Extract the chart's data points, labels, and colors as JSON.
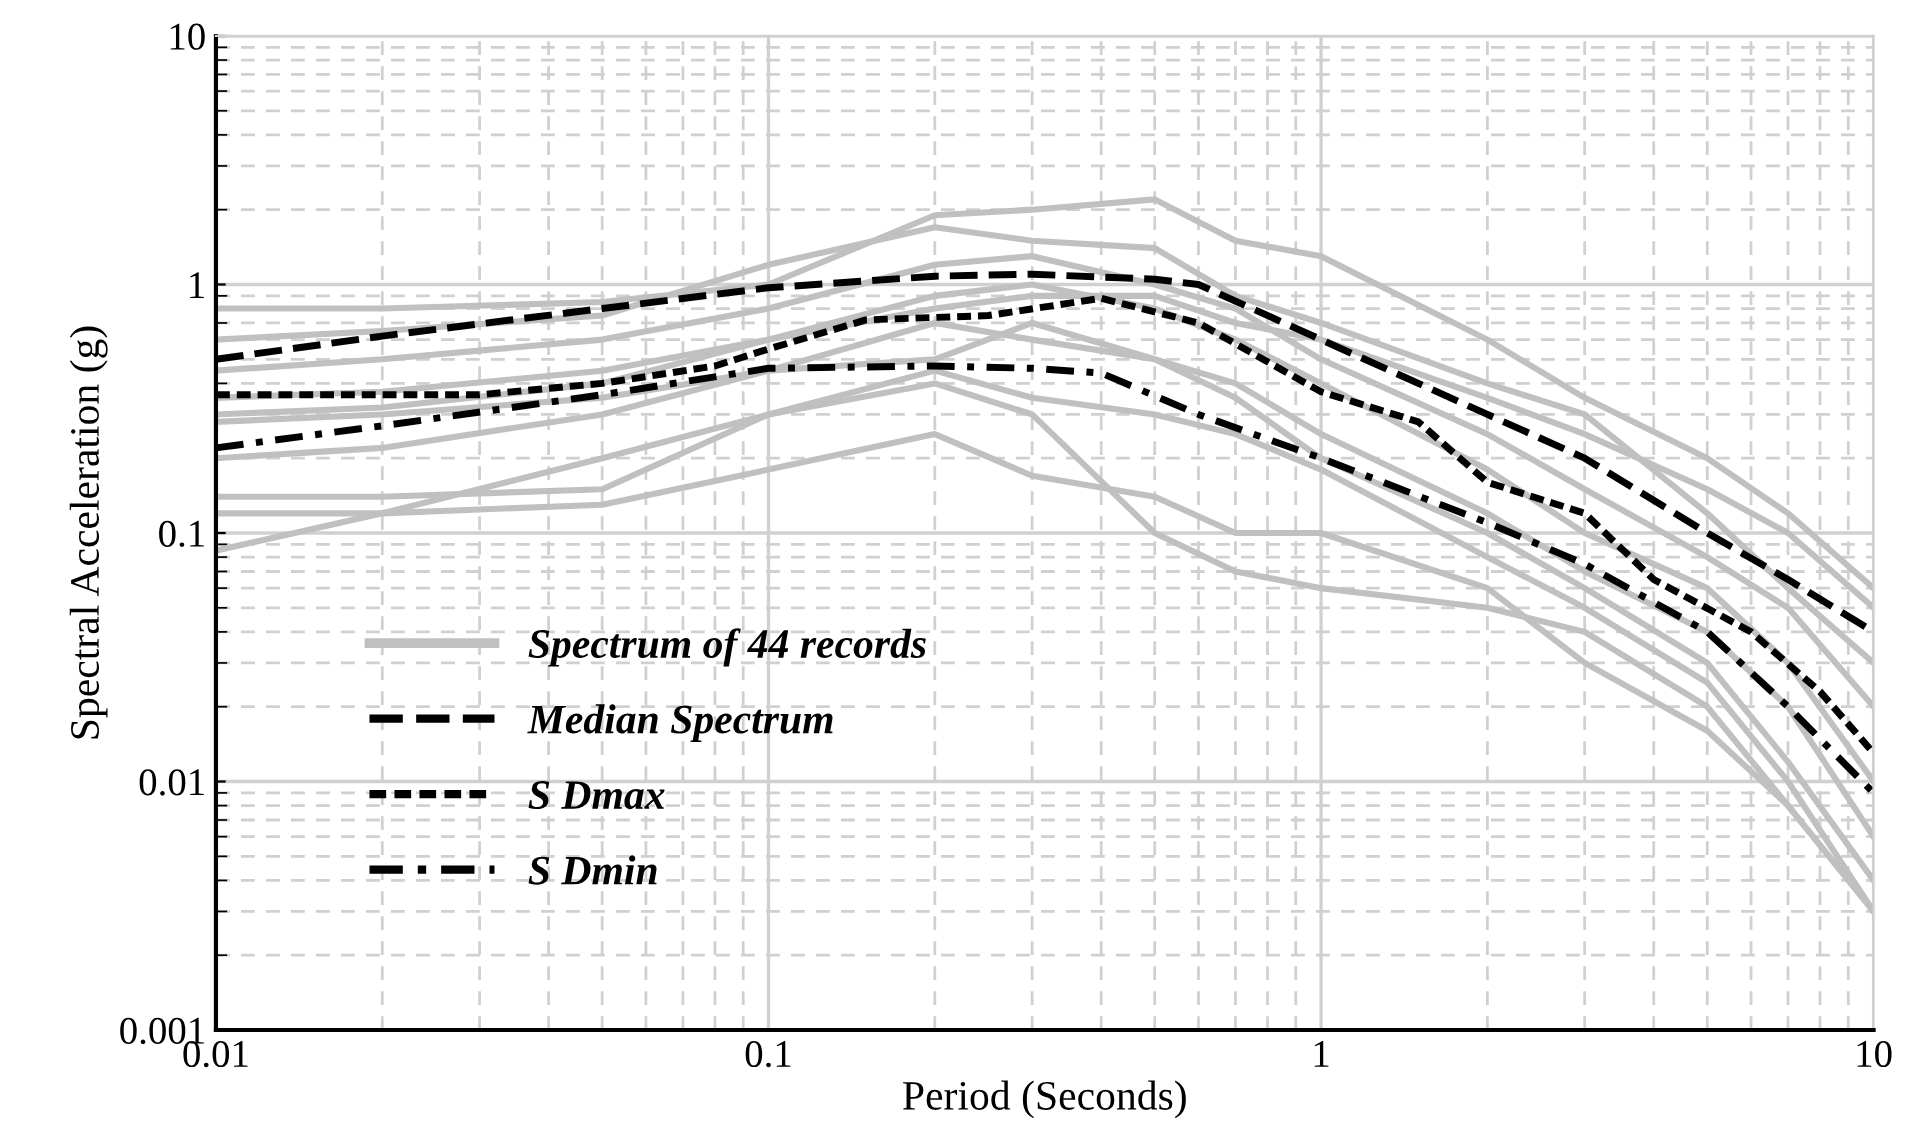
{
  "chart_data": {
    "type": "line",
    "xlabel": "Period (Seconds)",
    "ylabel": "Spectral Acceleration (g)",
    "log": "xy",
    "xlim": [
      0.01,
      10
    ],
    "xticks": [
      0.01,
      0.1,
      1,
      10
    ],
    "ylim": [
      0.001,
      10
    ],
    "yticks": [
      0.001,
      0.01,
      0.1,
      1,
      10
    ],
    "grid": true,
    "legend": "bottom left",
    "x": [
      0.01,
      0.02,
      0.05,
      0.1,
      0.2,
      0.3,
      0.5,
      0.7,
      1,
      2,
      3,
      5,
      7,
      10
    ],
    "series": [
      {
        "name": "Spectrum of 44 records",
        "color": "#c0c0c0",
        "line_style": "solid",
        "values": [
          0.8,
          0.8,
          0.85,
          1.0,
          1.9,
          2.0,
          2.2,
          1.5,
          1.3,
          0.6,
          0.35,
          0.2,
          0.12,
          0.06
        ]
      },
      {
        "color": "#c0c0c0",
        "line_style": "solid",
        "values": [
          0.6,
          0.65,
          0.75,
          1.2,
          1.7,
          1.5,
          1.4,
          0.9,
          0.7,
          0.4,
          0.3,
          0.12,
          0.06,
          0.03
        ]
      },
      {
        "color": "#c0c0c0",
        "line_style": "solid",
        "values": [
          0.45,
          0.5,
          0.6,
          0.8,
          1.2,
          1.3,
          1.0,
          0.8,
          0.5,
          0.25,
          0.15,
          0.08,
          0.05,
          0.02
        ]
      },
      {
        "color": "#c0c0c0",
        "line_style": "solid",
        "values": [
          0.35,
          0.37,
          0.45,
          0.6,
          0.9,
          1.0,
          0.8,
          0.6,
          0.4,
          0.18,
          0.1,
          0.06,
          0.03,
          0.01
        ]
      },
      {
        "color": "#c0c0c0",
        "line_style": "solid",
        "values": [
          0.28,
          0.3,
          0.35,
          0.45,
          0.7,
          0.6,
          0.5,
          0.4,
          0.25,
          0.12,
          0.07,
          0.04,
          0.02,
          0.006
        ]
      },
      {
        "color": "#c0c0c0",
        "line_style": "solid",
        "values": [
          0.2,
          0.22,
          0.3,
          0.45,
          0.5,
          0.7,
          0.5,
          0.35,
          0.2,
          0.1,
          0.06,
          0.03,
          0.012,
          0.004
        ]
      },
      {
        "color": "#c0c0c0",
        "line_style": "solid",
        "values": [
          0.14,
          0.14,
          0.15,
          0.3,
          0.45,
          0.35,
          0.3,
          0.25,
          0.18,
          0.08,
          0.05,
          0.025,
          0.01,
          0.003
        ]
      },
      {
        "color": "#c0c0c0",
        "line_style": "solid",
        "values": [
          0.12,
          0.12,
          0.13,
          0.18,
          0.25,
          0.17,
          0.14,
          0.1,
          0.1,
          0.06,
          0.03,
          0.016,
          0.008,
          0.003
        ]
      },
      {
        "color": "#c0c0c0",
        "line_style": "solid",
        "values": [
          0.085,
          0.12,
          0.2,
          0.3,
          0.4,
          0.3,
          0.1,
          0.07,
          0.06,
          0.05,
          0.04,
          0.02,
          0.008,
          0.003
        ]
      },
      {
        "color": "#c0c0c0",
        "line_style": "solid",
        "values": [
          0.3,
          0.32,
          0.4,
          0.6,
          0.8,
          0.9,
          0.9,
          0.7,
          0.6,
          0.35,
          0.25,
          0.15,
          0.1,
          0.05
        ]
      },
      {
        "name": "Median Spectrum",
        "color": "#000000",
        "line_style": "dashed",
        "x": [
          0.01,
          0.02,
          0.05,
          0.1,
          0.2,
          0.3,
          0.5,
          0.6,
          1,
          2,
          3,
          5,
          7,
          10
        ],
        "values": [
          0.5,
          0.62,
          0.8,
          0.97,
          1.08,
          1.1,
          1.05,
          1.0,
          0.6,
          0.3,
          0.2,
          0.1,
          0.065,
          0.04
        ]
      },
      {
        "name": "S Dmax",
        "color": "#000000",
        "line_style": "short_dashed",
        "x": [
          0.01,
          0.03,
          0.05,
          0.08,
          0.1,
          0.15,
          0.25,
          0.4,
          0.6,
          1,
          1.5,
          2,
          3,
          4,
          6,
          8,
          10
        ],
        "values": [
          0.36,
          0.36,
          0.4,
          0.47,
          0.55,
          0.72,
          0.75,
          0.88,
          0.7,
          0.37,
          0.28,
          0.16,
          0.12,
          0.065,
          0.04,
          0.023,
          0.013
        ]
      },
      {
        "name": "S Dmin",
        "color": "#000000",
        "line_style": "dashdot",
        "x": [
          0.01,
          0.02,
          0.05,
          0.1,
          0.2,
          0.3,
          0.4,
          0.6,
          1,
          2,
          3,
          5,
          7,
          10
        ],
        "values": [
          0.22,
          0.27,
          0.36,
          0.46,
          0.47,
          0.46,
          0.44,
          0.3,
          0.2,
          0.11,
          0.075,
          0.04,
          0.02,
          0.009
        ]
      }
    ]
  }
}
